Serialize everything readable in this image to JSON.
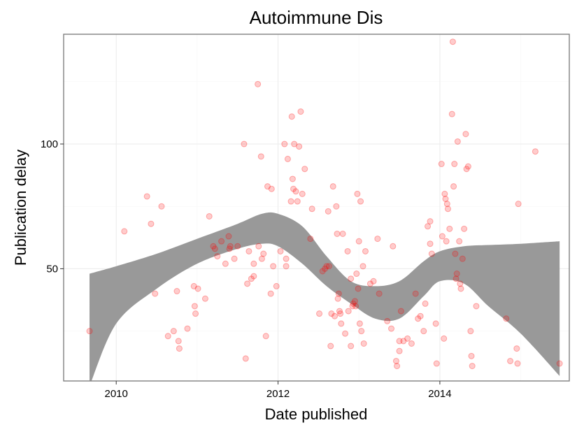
{
  "chart_data": {
    "type": "scatter",
    "title": "Autoimmune Dis",
    "xlabel": "Date published",
    "ylabel": "Publication delay",
    "xlim": [
      2009.35,
      2015.6
    ],
    "ylim": [
      5,
      144
    ],
    "x_ticks": [
      2010,
      2012,
      2014
    ],
    "x_tick_labels": [
      "2010",
      "2012",
      "2014"
    ],
    "y_ticks": [
      50,
      100
    ],
    "y_tick_labels": [
      "50",
      "100"
    ],
    "grid": true,
    "legend": "none",
    "colors": {
      "points": "#ff0000",
      "band": "#999999",
      "frame": "#7f7f7f"
    },
    "series": [
      {
        "values": [
          [
            2009.67,
            25
          ],
          [
            2010.1,
            65
          ],
          [
            2010.38,
            79
          ],
          [
            2010.43,
            68
          ],
          [
            2010.48,
            40
          ],
          [
            2010.56,
            75
          ],
          [
            2010.64,
            23
          ],
          [
            2010.71,
            25
          ],
          [
            2010.75,
            41
          ],
          [
            2010.77,
            21
          ],
          [
            2010.78,
            18
          ],
          [
            2010.88,
            26
          ],
          [
            2010.96,
            43
          ],
          [
            2010.97,
            35
          ],
          [
            2010.98,
            32
          ],
          [
            2011.01,
            42
          ],
          [
            2011.1,
            38
          ],
          [
            2011.15,
            71
          ],
          [
            2011.2,
            59
          ],
          [
            2011.22,
            58
          ],
          [
            2011.25,
            55
          ],
          [
            2011.3,
            61
          ],
          [
            2011.35,
            52
          ],
          [
            2011.39,
            63
          ],
          [
            2011.4,
            58
          ],
          [
            2011.41,
            59
          ],
          [
            2011.46,
            54
          ],
          [
            2011.5,
            59
          ],
          [
            2011.58,
            100
          ],
          [
            2011.6,
            14
          ],
          [
            2011.62,
            44
          ],
          [
            2011.64,
            57
          ],
          [
            2011.67,
            46
          ],
          [
            2011.7,
            47
          ],
          [
            2011.7,
            52
          ],
          [
            2011.75,
            124
          ],
          [
            2011.76,
            59
          ],
          [
            2011.79,
            95
          ],
          [
            2011.8,
            54
          ],
          [
            2011.82,
            56
          ],
          [
            2011.85,
            23
          ],
          [
            2011.87,
            83
          ],
          [
            2011.91,
            40
          ],
          [
            2011.92,
            82
          ],
          [
            2011.94,
            51
          ],
          [
            2011.98,
            43
          ],
          [
            2012.03,
            57
          ],
          [
            2012.08,
            100
          ],
          [
            2012.1,
            54
          ],
          [
            2012.1,
            51
          ],
          [
            2012.12,
            94
          ],
          [
            2012.16,
            77
          ],
          [
            2012.17,
            111
          ],
          [
            2012.18,
            86
          ],
          [
            2012.19,
            82
          ],
          [
            2012.2,
            100
          ],
          [
            2012.22,
            81
          ],
          [
            2012.24,
            77
          ],
          [
            2012.26,
            99
          ],
          [
            2012.28,
            113
          ],
          [
            2012.3,
            80
          ],
          [
            2012.33,
            90
          ],
          [
            2012.4,
            62
          ],
          [
            2012.42,
            74
          ],
          [
            2012.51,
            32
          ],
          [
            2012.55,
            49
          ],
          [
            2012.58,
            50
          ],
          [
            2012.6,
            51
          ],
          [
            2012.62,
            73
          ],
          [
            2012.63,
            51
          ],
          [
            2012.65,
            19
          ],
          [
            2012.66,
            32
          ],
          [
            2012.68,
            83
          ],
          [
            2012.7,
            31
          ],
          [
            2012.72,
            75
          ],
          [
            2012.73,
            64
          ],
          [
            2012.74,
            38
          ],
          [
            2012.75,
            40
          ],
          [
            2012.76,
            33
          ],
          [
            2012.77,
            32
          ],
          [
            2012.78,
            28
          ],
          [
            2012.8,
            64
          ],
          [
            2012.83,
            24
          ],
          [
            2012.86,
            57
          ],
          [
            2012.87,
            33
          ],
          [
            2012.9,
            46
          ],
          [
            2012.9,
            19
          ],
          [
            2012.92,
            35
          ],
          [
            2012.93,
            36
          ],
          [
            2012.95,
            37
          ],
          [
            2012.96,
            35
          ],
          [
            2012.97,
            48
          ],
          [
            2012.98,
            80
          ],
          [
            2012.99,
            42
          ],
          [
            2013.0,
            61
          ],
          [
            2013.01,
            28
          ],
          [
            2013.02,
            77
          ],
          [
            2013.03,
            25
          ],
          [
            2013.05,
            51
          ],
          [
            2013.06,
            20
          ],
          [
            2013.08,
            57
          ],
          [
            2013.14,
            44
          ],
          [
            2013.18,
            45
          ],
          [
            2013.23,
            62
          ],
          [
            2013.25,
            40
          ],
          [
            2013.35,
            29
          ],
          [
            2013.4,
            26
          ],
          [
            2013.42,
            59
          ],
          [
            2013.46,
            13
          ],
          [
            2013.47,
            11
          ],
          [
            2013.5,
            21
          ],
          [
            2013.5,
            17
          ],
          [
            2013.52,
            33
          ],
          [
            2013.55,
            21
          ],
          [
            2013.6,
            22
          ],
          [
            2013.65,
            20
          ],
          [
            2013.7,
            40
          ],
          [
            2013.73,
            30
          ],
          [
            2013.76,
            31
          ],
          [
            2013.8,
            25
          ],
          [
            2013.82,
            36
          ],
          [
            2013.85,
            67
          ],
          [
            2013.88,
            69
          ],
          [
            2013.88,
            60
          ],
          [
            2013.9,
            56
          ],
          [
            2013.95,
            28
          ],
          [
            2013.96,
            12
          ],
          [
            2014.02,
            92
          ],
          [
            2014.03,
            63
          ],
          [
            2014.05,
            22
          ],
          [
            2014.06,
            80
          ],
          [
            2014.07,
            78
          ],
          [
            2014.08,
            61
          ],
          [
            2014.09,
            76
          ],
          [
            2014.1,
            74
          ],
          [
            2014.12,
            66
          ],
          [
            2014.15,
            112
          ],
          [
            2014.16,
            141
          ],
          [
            2014.17,
            83
          ],
          [
            2014.18,
            92
          ],
          [
            2014.19,
            56
          ],
          [
            2014.2,
            46
          ],
          [
            2014.21,
            48
          ],
          [
            2014.22,
            101
          ],
          [
            2014.24,
            61
          ],
          [
            2014.25,
            44
          ],
          [
            2014.26,
            42
          ],
          [
            2014.28,
            54
          ],
          [
            2014.3,
            66
          ],
          [
            2014.32,
            104
          ],
          [
            2014.33,
            90
          ],
          [
            2014.35,
            91
          ],
          [
            2014.38,
            25
          ],
          [
            2014.39,
            15
          ],
          [
            2014.4,
            11
          ],
          [
            2014.45,
            35
          ],
          [
            2014.82,
            30
          ],
          [
            2014.87,
            13
          ],
          [
            2014.95,
            18
          ],
          [
            2014.96,
            12
          ],
          [
            2014.97,
            76
          ],
          [
            2015.18,
            97
          ],
          [
            2015.48,
            12
          ]
        ]
      }
    ],
    "smooth_band": {
      "x": [
        2009.67,
        2010.0,
        2010.5,
        2011.0,
        2011.5,
        2011.8,
        2012.0,
        2012.3,
        2012.6,
        2012.9,
        2013.2,
        2013.5,
        2013.8,
        2014.0,
        2014.3,
        2014.6,
        2015.0,
        2015.48
      ],
      "upper": [
        48,
        51,
        56,
        62,
        68,
        72,
        72,
        67,
        55,
        45,
        43,
        45,
        53,
        57,
        59,
        59.5,
        60,
        61
      ],
      "lower": [
        3,
        28,
        42,
        52,
        58,
        60,
        59,
        52,
        43,
        36,
        30,
        30,
        39,
        45,
        44,
        35,
        24,
        7
      ]
    }
  }
}
